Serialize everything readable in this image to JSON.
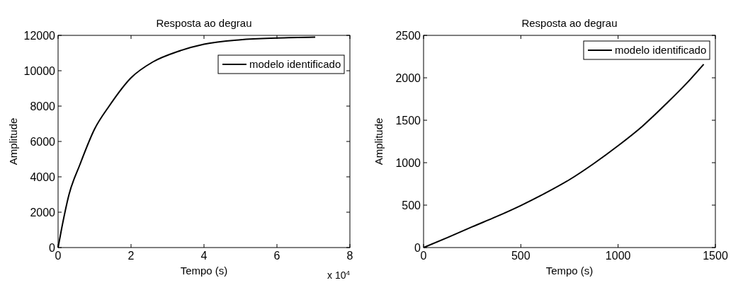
{
  "chart_data": [
    {
      "type": "line",
      "title": "Resposta ao degrau",
      "xlabel": "Tempo (s)",
      "ylabel": "Amplitude",
      "annotations": [
        "x 10$^{4}$"
      ],
      "xlim": [
        0,
        8
      ],
      "xticks": [
        0,
        2,
        4,
        6,
        8
      ],
      "ylim": [
        0,
        12000
      ],
      "yticks": [
        0,
        2000,
        4000,
        6000,
        8000,
        10000,
        12000
      ],
      "legend": "top right",
      "grid": false,
      "series": [
        {
          "name": "modelo identificado",
          "color": "#000000",
          "x": [
            0,
            0.1,
            0.3,
            0.6,
            1,
            1.4,
            2,
            2.6,
            3.3,
            4,
            5,
            6,
            7.05
          ],
          "values": [
            0,
            1100,
            3000,
            4700,
            6700,
            8000,
            9600,
            10500,
            11100,
            11500,
            11750,
            11850,
            11900
          ]
        }
      ]
    },
    {
      "type": "line",
      "title": "Resposta ao degrau",
      "xlabel": "Tempo (s)",
      "ylabel": "Amplitude",
      "xlim": [
        0,
        1500
      ],
      "xticks": [
        0,
        500,
        1000,
        1500
      ],
      "ylim": [
        0,
        2500
      ],
      "yticks": [
        0,
        500,
        1000,
        1500,
        2000,
        2500
      ],
      "legend": "top right",
      "grid": false,
      "series": [
        {
          "name": "modelo identificado",
          "color": "#000000",
          "x": [
            0,
            125,
            250,
            375,
            500,
            625,
            750,
            875,
            1000,
            1125,
            1250,
            1350,
            1440
          ],
          "values": [
            0,
            120,
            245,
            365,
            495,
            640,
            800,
            990,
            1200,
            1430,
            1700,
            1930,
            2160
          ]
        }
      ]
    }
  ]
}
